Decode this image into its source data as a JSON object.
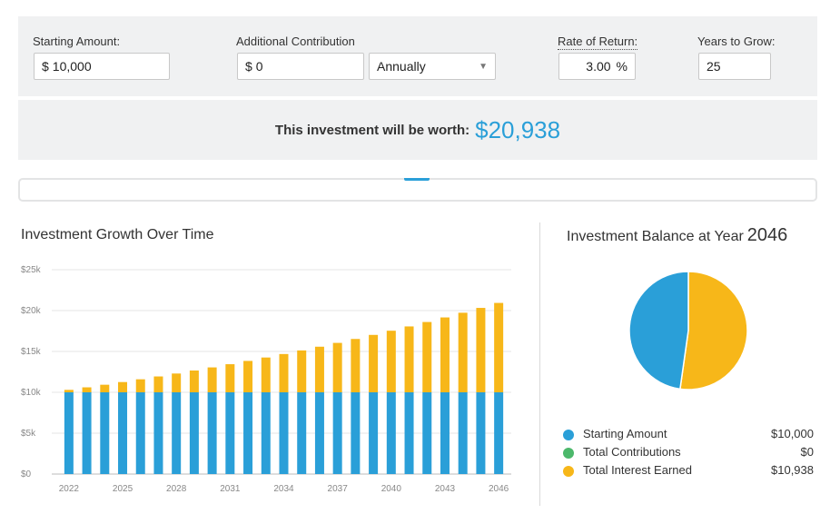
{
  "inputs": {
    "starting_amount": {
      "label": "Starting Amount:",
      "prefix": "$",
      "value": "10,000"
    },
    "additional_contribution": {
      "label": "Additional Contribution",
      "prefix": "$",
      "value": "0",
      "frequency": "Annually"
    },
    "rate_of_return": {
      "label": "Rate of Return:",
      "value": "3.00",
      "suffix": "%"
    },
    "years_to_grow": {
      "label": "Years to Grow:",
      "value": "25"
    }
  },
  "result": {
    "label": "This investment will be worth:",
    "value": "$20,938"
  },
  "growth_chart": {
    "title": "Investment Growth Over Time"
  },
  "balance": {
    "title": "Investment Balance at Year",
    "year": "2046"
  },
  "legend": [
    {
      "name": "Starting Amount",
      "value": "$10,000",
      "color": "#2a9fd8"
    },
    {
      "name": "Total Contributions",
      "value": "$0",
      "color": "#4cb86b"
    },
    {
      "name": "Total Interest Earned",
      "value": "$10,938",
      "color": "#f7b719"
    }
  ],
  "colors": {
    "accent": "#2a9fd8",
    "starting": "#2a9fd8",
    "contributions": "#4cb86b",
    "interest": "#f7b719"
  },
  "chart_data": [
    {
      "type": "bar",
      "stacked": true,
      "title": "Investment Growth Over Time",
      "x": [
        2022,
        2023,
        2024,
        2025,
        2026,
        2027,
        2028,
        2029,
        2030,
        2031,
        2032,
        2033,
        2034,
        2035,
        2036,
        2037,
        2038,
        2039,
        2040,
        2041,
        2042,
        2043,
        2044,
        2045,
        2046
      ],
      "x_tick_labels": [
        "2022",
        "2025",
        "2028",
        "2031",
        "2034",
        "2037",
        "2040",
        "2043",
        "2046"
      ],
      "y_tick_labels": [
        "$0",
        "$5k",
        "$10k",
        "$15k",
        "$20k",
        "$25k"
      ],
      "ylim": [
        0,
        25000
      ],
      "grid": true,
      "series": [
        {
          "name": "Starting Amount",
          "color": "#2a9fd8",
          "values": [
            10000,
            10000,
            10000,
            10000,
            10000,
            10000,
            10000,
            10000,
            10000,
            10000,
            10000,
            10000,
            10000,
            10000,
            10000,
            10000,
            10000,
            10000,
            10000,
            10000,
            10000,
            10000,
            10000,
            10000,
            10000
          ]
        },
        {
          "name": "Total Contributions",
          "color": "#4cb86b",
          "values": [
            0,
            0,
            0,
            0,
            0,
            0,
            0,
            0,
            0,
            0,
            0,
            0,
            0,
            0,
            0,
            0,
            0,
            0,
            0,
            0,
            0,
            0,
            0,
            0,
            0
          ]
        },
        {
          "name": "Total Interest Earned",
          "color": "#f7b719",
          "values": [
            300,
            609,
            927,
            1255,
            1593,
            1941,
            2299,
            2668,
            3048,
            3439,
            3842,
            4258,
            4685,
            5126,
            5580,
            6047,
            6528,
            7024,
            7535,
            8061,
            8603,
            9161,
            9736,
            10328,
            10938
          ]
        }
      ]
    },
    {
      "type": "pie",
      "title": "Investment Balance at Year 2046",
      "labels": [
        "Starting Amount",
        "Total Contributions",
        "Total Interest Earned"
      ],
      "values": [
        10000,
        0,
        10938
      ],
      "colors": [
        "#2a9fd8",
        "#4cb86b",
        "#f7b719"
      ]
    }
  ]
}
